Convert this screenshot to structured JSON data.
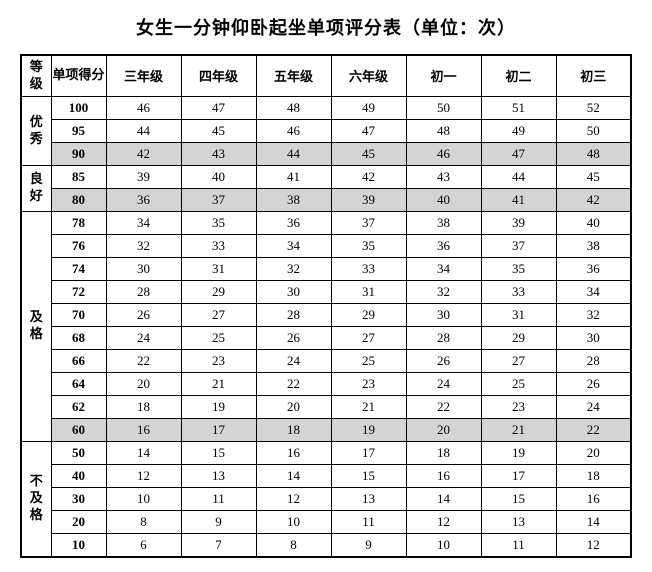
{
  "title": "女生一分钟仰卧起坐单项评分表（单位：次）",
  "headers": {
    "cat": "等级",
    "score": "单项得分",
    "g3": "三年级",
    "g4": "四年级",
    "g5": "五年级",
    "g6": "六年级",
    "j1": "初一",
    "j2": "初二",
    "j3": "初三"
  },
  "cats": {
    "excellent": "优秀",
    "good": "良好",
    "pass": "及格",
    "fail": "不及格"
  },
  "rows": [
    {
      "s": "100",
      "v": [
        "46",
        "47",
        "48",
        "49",
        "50",
        "51",
        "52"
      ],
      "shade": false
    },
    {
      "s": "95",
      "v": [
        "44",
        "45",
        "46",
        "47",
        "48",
        "49",
        "50"
      ],
      "shade": false
    },
    {
      "s": "90",
      "v": [
        "42",
        "43",
        "44",
        "45",
        "46",
        "47",
        "48"
      ],
      "shade": true
    },
    {
      "s": "85",
      "v": [
        "39",
        "40",
        "41",
        "42",
        "43",
        "44",
        "45"
      ],
      "shade": false
    },
    {
      "s": "80",
      "v": [
        "36",
        "37",
        "38",
        "39",
        "40",
        "41",
        "42"
      ],
      "shade": true
    },
    {
      "s": "78",
      "v": [
        "34",
        "35",
        "36",
        "37",
        "38",
        "39",
        "40"
      ],
      "shade": false
    },
    {
      "s": "76",
      "v": [
        "32",
        "33",
        "34",
        "35",
        "36",
        "37",
        "38"
      ],
      "shade": false
    },
    {
      "s": "74",
      "v": [
        "30",
        "31",
        "32",
        "33",
        "34",
        "35",
        "36"
      ],
      "shade": false
    },
    {
      "s": "72",
      "v": [
        "28",
        "29",
        "30",
        "31",
        "32",
        "33",
        "34"
      ],
      "shade": false
    },
    {
      "s": "70",
      "v": [
        "26",
        "27",
        "28",
        "29",
        "30",
        "31",
        "32"
      ],
      "shade": false
    },
    {
      "s": "68",
      "v": [
        "24",
        "25",
        "26",
        "27",
        "28",
        "29",
        "30"
      ],
      "shade": false
    },
    {
      "s": "66",
      "v": [
        "22",
        "23",
        "24",
        "25",
        "26",
        "27",
        "28"
      ],
      "shade": false
    },
    {
      "s": "64",
      "v": [
        "20",
        "21",
        "22",
        "23",
        "24",
        "25",
        "26"
      ],
      "shade": false
    },
    {
      "s": "62",
      "v": [
        "18",
        "19",
        "20",
        "21",
        "22",
        "23",
        "24"
      ],
      "shade": false
    },
    {
      "s": "60",
      "v": [
        "16",
        "17",
        "18",
        "19",
        "20",
        "21",
        "22"
      ],
      "shade": true
    },
    {
      "s": "50",
      "v": [
        "14",
        "15",
        "16",
        "17",
        "18",
        "19",
        "20"
      ],
      "shade": false
    },
    {
      "s": "40",
      "v": [
        "12",
        "13",
        "14",
        "15",
        "16",
        "17",
        "18"
      ],
      "shade": false
    },
    {
      "s": "30",
      "v": [
        "10",
        "11",
        "12",
        "13",
        "14",
        "15",
        "16"
      ],
      "shade": false
    },
    {
      "s": "20",
      "v": [
        "8",
        "9",
        "10",
        "11",
        "12",
        "13",
        "14"
      ],
      "shade": false
    },
    {
      "s": "10",
      "v": [
        "6",
        "7",
        "8",
        "9",
        "10",
        "11",
        "12"
      ],
      "shade": false
    }
  ],
  "groups": [
    {
      "cat": "excellent",
      "start": 0,
      "span": 3
    },
    {
      "cat": "good",
      "start": 3,
      "span": 2
    },
    {
      "cat": "pass",
      "start": 5,
      "span": 10
    },
    {
      "cat": "fail",
      "start": 15,
      "span": 5
    }
  ]
}
